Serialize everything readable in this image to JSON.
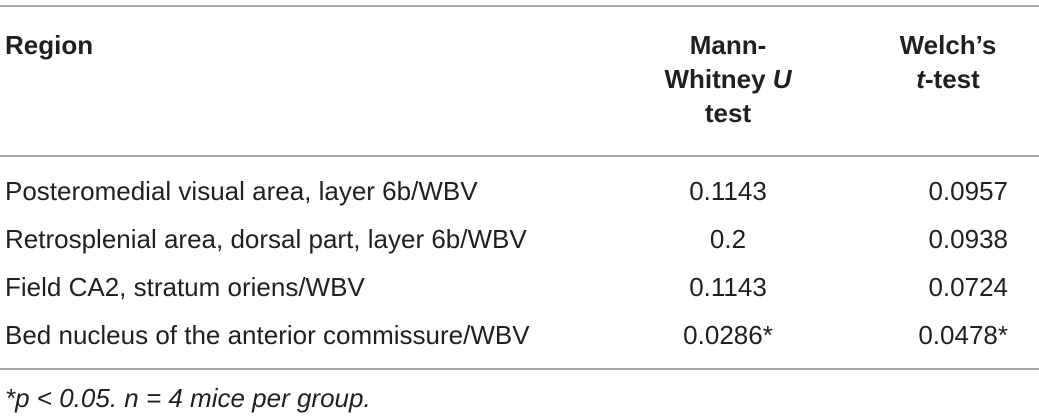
{
  "table": {
    "columns": [
      "Region",
      [
        "Mann-",
        "Whitney ",
        "U",
        "test"
      ],
      [
        "Welch’s",
        "t",
        "-test"
      ]
    ],
    "rows": [
      [
        "Posteromedial visual area, layer 6b/WBV",
        "0.1143",
        "0.0957"
      ],
      [
        "Retrosplenial area, dorsal part, layer 6b/WBV",
        "0.2",
        "0.0938"
      ],
      [
        "Field CA2, stratum oriens/WBV",
        "0.1143",
        "0.0724"
      ],
      [
        "Bed nucleus of the anterior commissure/WBV",
        "0.0286*",
        "0.0478*"
      ]
    ],
    "footnote": "*p < 0.05. n = 4 mice per group."
  }
}
